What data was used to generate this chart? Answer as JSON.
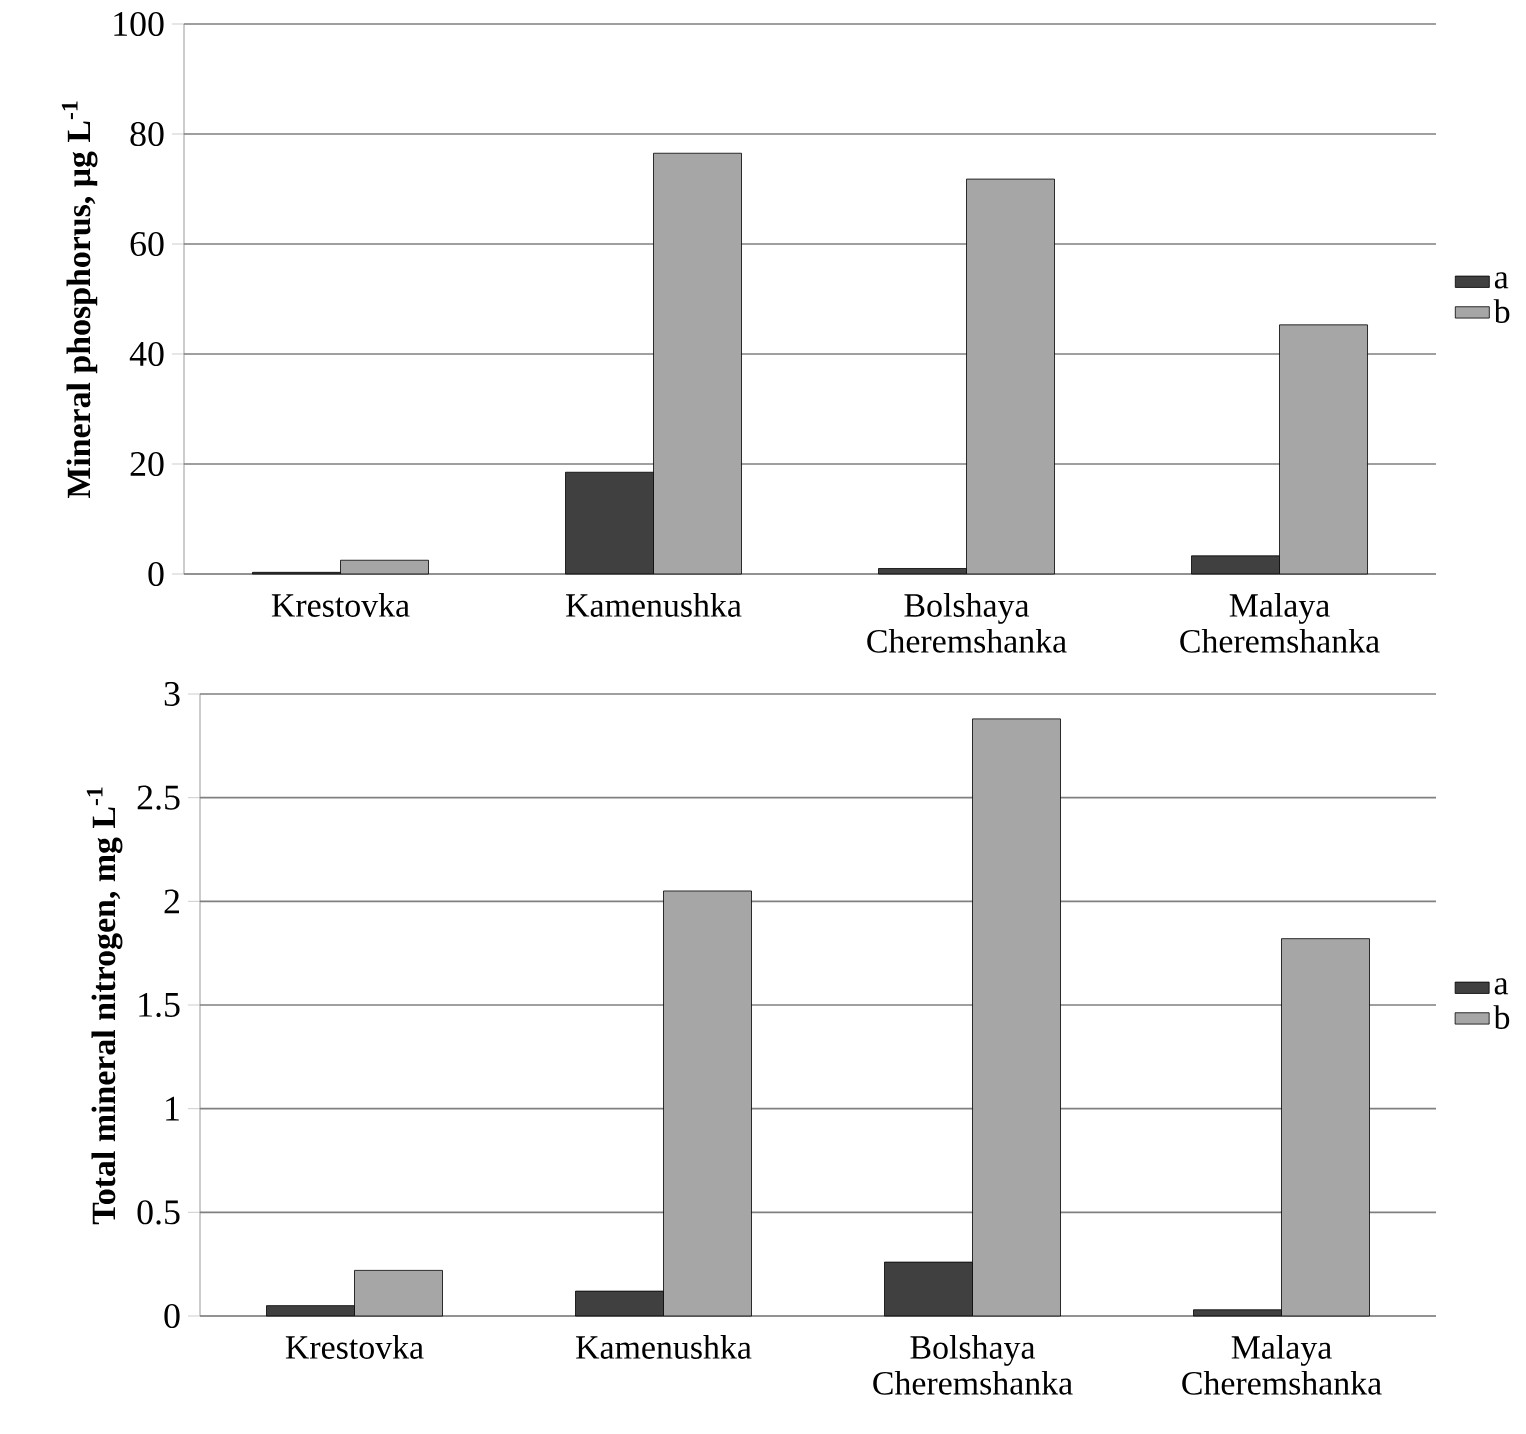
{
  "chart_data": [
    {
      "type": "bar",
      "ylabel": "Mineral phosphorus, μg L$^{-1}$",
      "categories": [
        "Krestovka",
        "Kamenushka",
        "Bolshaya Cheremshanka",
        "Malaya Cheremshanka"
      ],
      "series": [
        {
          "name": "a",
          "color": "#404040",
          "values": [
            0.3,
            18.5,
            1.0,
            3.3
          ]
        },
        {
          "name": "b",
          "color": "#a6a6a6",
          "values": [
            2.5,
            76.5,
            71.8,
            45.3
          ]
        }
      ],
      "ylim": [
        0,
        100
      ],
      "yticks": [
        0,
        20,
        40,
        60,
        80,
        100
      ],
      "grid": "y",
      "legend": "right"
    },
    {
      "type": "bar",
      "ylabel": "Total mineral nitrogen, mg L$^{-1}$",
      "categories": [
        "Krestovka",
        "Kamenushka",
        "Bolshaya Cheremshanka",
        "Malaya Cheremshanka"
      ],
      "series": [
        {
          "name": "a",
          "color": "#404040",
          "values": [
            0.05,
            0.12,
            0.26,
            0.03
          ]
        },
        {
          "name": "b",
          "color": "#a6a6a6",
          "values": [
            0.22,
            2.05,
            2.88,
            1.82
          ]
        }
      ],
      "ylim": [
        0,
        3
      ],
      "yticks": [
        0,
        0.5,
        1,
        1.5,
        2,
        2.5,
        3
      ],
      "grid": "y",
      "legend": "right"
    }
  ]
}
